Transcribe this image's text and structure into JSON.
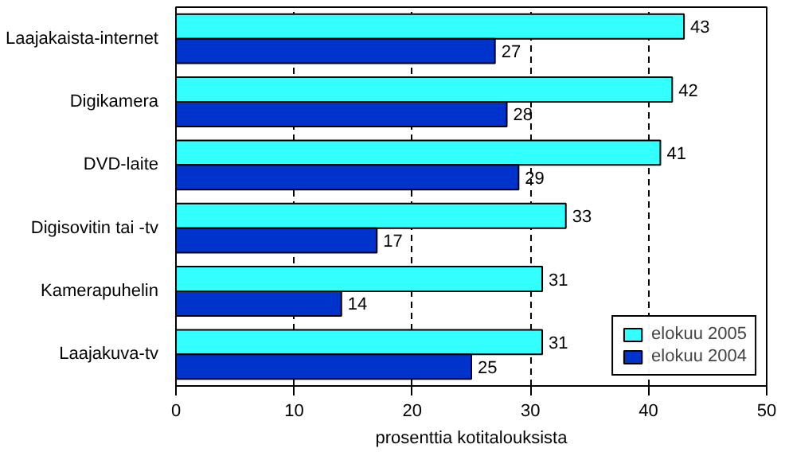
{
  "chart_data": {
    "type": "bar",
    "orientation": "horizontal",
    "xlabel": "prosenttia kotitalouksista",
    "categories": [
      "Laajakaista-internet",
      "Digikamera",
      "DVD-laite",
      "Digisovitin tai -tv",
      "Kamerapuhelin",
      "Laajakuva-tv"
    ],
    "series": [
      {
        "name": "elokuu 2005",
        "color": "#33ffff",
        "values": [
          43,
          42,
          41,
          33,
          31,
          31
        ]
      },
      {
        "name": "elokuu 2004",
        "color": "#0033cc",
        "values": [
          27,
          28,
          29,
          17,
          14,
          25
        ]
      }
    ],
    "xlim": [
      0,
      50
    ],
    "xticks": [
      0,
      10,
      20,
      30,
      40,
      50
    ],
    "grid": "x",
    "legend": "bottom right",
    "data_labels": true
  }
}
